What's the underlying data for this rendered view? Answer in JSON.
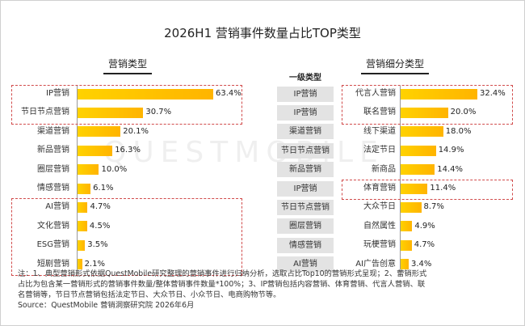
{
  "title": "2026H1 营销事件数量占比TOP类型",
  "left_subtitle": "营销类型",
  "right_subtitle": "营销细分类型",
  "category_header": "一级类型",
  "watermark": "QUESTMOBILE",
  "chart_data": [
    {
      "type": "bar",
      "orientation": "horizontal",
      "title": "营销类型",
      "categories": [
        "IP营销",
        "节日节点营销",
        "渠道营销",
        "新品营销",
        "圈层营销",
        "情感营销",
        "AI营销",
        "文化营销",
        "ESG营销",
        "短剧营销"
      ],
      "values": [
        63.4,
        30.7,
        20.1,
        16.3,
        10.0,
        6.1,
        4.7,
        4.5,
        3.5,
        2.1
      ],
      "labels": [
        "63.4%",
        "30.7%",
        "20.1%",
        "16.3%",
        "10.0%",
        "6.1%",
        "4.7%",
        "4.5%",
        "3.5%",
        "2.1%"
      ],
      "unit": "%",
      "xlim": [
        0,
        70
      ]
    },
    {
      "type": "bar",
      "orientation": "horizontal",
      "title": "营销细分类型",
      "categories": [
        "代言人营销",
        "联名营销",
        "线下渠道",
        "法定节日",
        "新商品",
        "体育营销",
        "大众节日",
        "自然属性",
        "玩梗营销",
        "AI广告创意"
      ],
      "values": [
        32.4,
        20.0,
        18.0,
        14.9,
        14.4,
        11.4,
        8.7,
        4.9,
        4.7,
        3.4
      ],
      "labels": [
        "32.4%",
        "20.0%",
        "18.0%",
        "14.9%",
        "14.4%",
        "11.4%",
        "8.7%",
        "4.9%",
        "4.7%",
        "3.4%"
      ],
      "parent_categories": [
        "IP营销",
        "IP营销",
        "渠道营销",
        "节日节点营销",
        "新品营销",
        "IP营销",
        "节日节点营销",
        "圈层营销",
        "情感营销",
        "AI营销"
      ],
      "unit": "%",
      "xlim": [
        0,
        37
      ]
    }
  ],
  "highlight_groups": {
    "left": [
      [
        0,
        1
      ],
      [
        6,
        9
      ]
    ],
    "right": [
      [
        0,
        1
      ],
      [
        5,
        5
      ]
    ]
  },
  "colors": {
    "bar": "#ffc400",
    "highlight": "#d14b4b",
    "category_bg": "#e3e3e3"
  },
  "notes": {
    "line1": "注：1、典型营销形式依据QuestMobile研究整理的营销事件进行归纳分析，选取占比Top10的营销形式呈现；2、营销形式",
    "line2": "占比为包含某一营销形式的营销事件数量/整体营销事件数量*100%；3、IP营销包括内容营销、体育营销、代言人营销、联",
    "line3": "名营销等，节日节点营销包括法定节日、大众节日、小众节日、电商购物节等。",
    "source": "Source：QuestMobile 营销洞察研究院 2026年6月"
  }
}
